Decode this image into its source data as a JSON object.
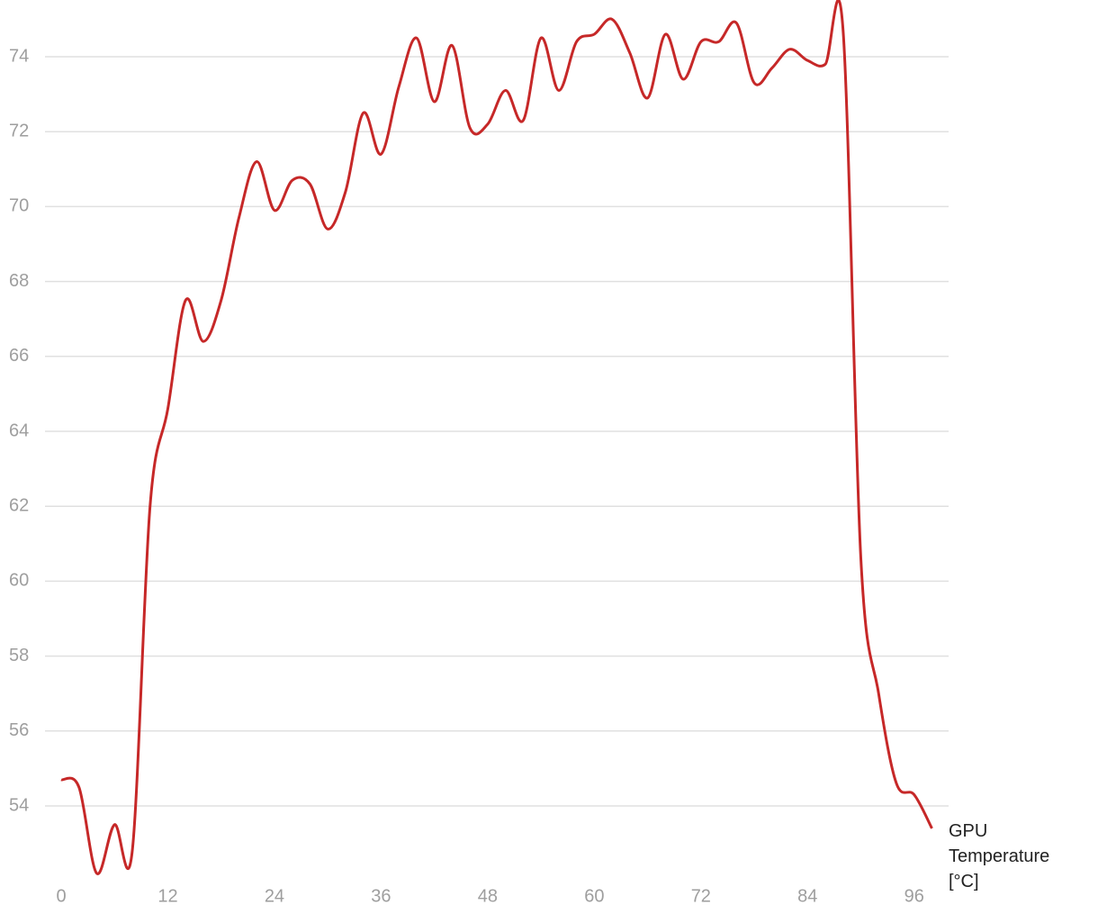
{
  "chart_data": {
    "type": "line",
    "x": [
      0,
      2,
      4,
      6,
      8,
      10,
      12,
      14,
      16,
      18,
      20,
      22,
      24,
      26,
      28,
      30,
      32,
      34,
      36,
      38,
      40,
      42,
      44,
      46,
      48,
      50,
      52,
      54,
      56,
      58,
      60,
      62,
      64,
      66,
      68,
      70,
      72,
      74,
      76,
      78,
      80,
      82,
      84,
      86,
      88,
      90,
      92,
      94,
      96,
      98
    ],
    "series": [
      {
        "name": "GPU Temperature [°C]",
        "color": "#c62828",
        "values": [
          54.7,
          54.5,
          52.2,
          53.5,
          52.8,
          62.0,
          64.6,
          67.5,
          66.4,
          67.5,
          69.7,
          71.2,
          69.9,
          70.7,
          70.6,
          69.4,
          70.4,
          72.5,
          71.4,
          73.2,
          74.5,
          72.8,
          74.3,
          72.1,
          72.2,
          73.1,
          72.3,
          74.5,
          73.1,
          74.4,
          74.6,
          75.0,
          74.1,
          72.9,
          74.6,
          73.4,
          74.4,
          74.4,
          74.9,
          73.3,
          73.7,
          74.2,
          73.9,
          73.8,
          74.7,
          60.6,
          57.0,
          54.6,
          54.3,
          53.4
        ]
      }
    ],
    "xlim": [
      0,
      98
    ],
    "xticks": [
      0,
      12,
      24,
      36,
      48,
      60,
      72,
      84,
      96
    ],
    "ylim": [
      52,
      75
    ],
    "yticks": [
      54,
      56,
      58,
      60,
      62,
      64,
      66,
      68,
      70,
      72,
      74
    ],
    "grid": true
  }
}
